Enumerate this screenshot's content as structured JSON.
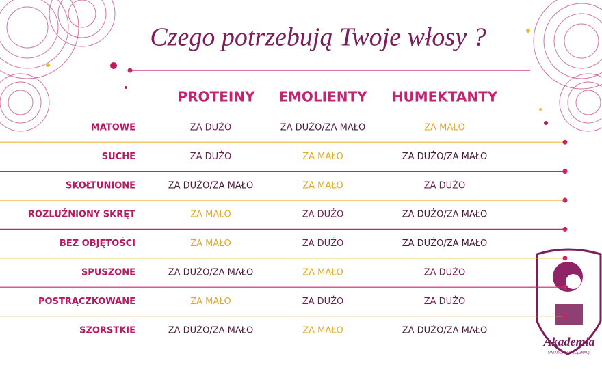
{
  "title": "Czego potrzebują Twoje włosy ?",
  "columns": [
    "PROTEINY",
    "EMOLIENTY",
    "HUMEKTANTY"
  ],
  "rows": [
    {
      "label": "MATOWE",
      "cells": [
        {
          "text": "ZA DUŻO",
          "color": "#6b1e4f"
        },
        {
          "text": "ZA DUŻO/ZA MAŁO",
          "color": "#4a1a3a"
        },
        {
          "text": "ZA MAŁO",
          "color": "#e0a92c"
        }
      ]
    },
    {
      "label": "SUCHE",
      "cells": [
        {
          "text": "ZA DUŻO",
          "color": "#6b1e4f"
        },
        {
          "text": "ZA MAŁO",
          "color": "#e0a92c"
        },
        {
          "text": "ZA DUŻO/ZA MAŁO",
          "color": "#4a1a3a"
        }
      ]
    },
    {
      "label": "SKOŁTUNIONE",
      "cells": [
        {
          "text": "ZA DUŻO/ZA MAŁO",
          "color": "#4a1a3a"
        },
        {
          "text": "ZA MAŁO",
          "color": "#e0a92c"
        },
        {
          "text": "ZA DUŻO",
          "color": "#6b1e4f"
        }
      ]
    },
    {
      "label": "ROZLUŹNIONY SKRĘT",
      "cells": [
        {
          "text": "ZA MAŁO",
          "color": "#e0a92c"
        },
        {
          "text": "ZA DUŻO",
          "color": "#6b1e4f"
        },
        {
          "text": "ZA DUŻO/ZA MAŁO",
          "color": "#4a1a3a"
        }
      ]
    },
    {
      "label": "BEZ OBJĘTOŚCI",
      "cells": [
        {
          "text": "ZA MAŁO",
          "color": "#e0a92c"
        },
        {
          "text": "ZA DUŻO",
          "color": "#6b1e4f"
        },
        {
          "text": "ZA DUŻO/ZA MAŁO",
          "color": "#4a1a3a"
        }
      ]
    },
    {
      "label": "SPUSZONE",
      "cells": [
        {
          "text": "ZA DUŻO/ZA MAŁO",
          "color": "#4a1a3a"
        },
        {
          "text": "ZA MAŁO",
          "color": "#e0a92c"
        },
        {
          "text": "ZA DUŻO",
          "color": "#6b1e4f"
        }
      ]
    },
    {
      "label": "POSTRĄCZKOWANE",
      "cells": [
        {
          "text": "ZA MAŁO",
          "color": "#e0a92c"
        },
        {
          "text": "ZA DUŻO",
          "color": "#6b1e4f"
        },
        {
          "text": "ZA DUŻO",
          "color": "#6b1e4f"
        }
      ]
    },
    {
      "label": "SZORSTKIE",
      "cells": [
        {
          "text": "ZA DUŻO/ZA MAŁO",
          "color": "#4a1a3a"
        },
        {
          "text": "ZA MAŁO",
          "color": "#e0a92c"
        },
        {
          "text": "ZA DUŻO/ZA MAŁO",
          "color": "#4a1a3a"
        }
      ]
    }
  ],
  "logo": {
    "name": "Akademia",
    "tagline": "ŚWIADOMEJ PIELĘGNACJI"
  }
}
